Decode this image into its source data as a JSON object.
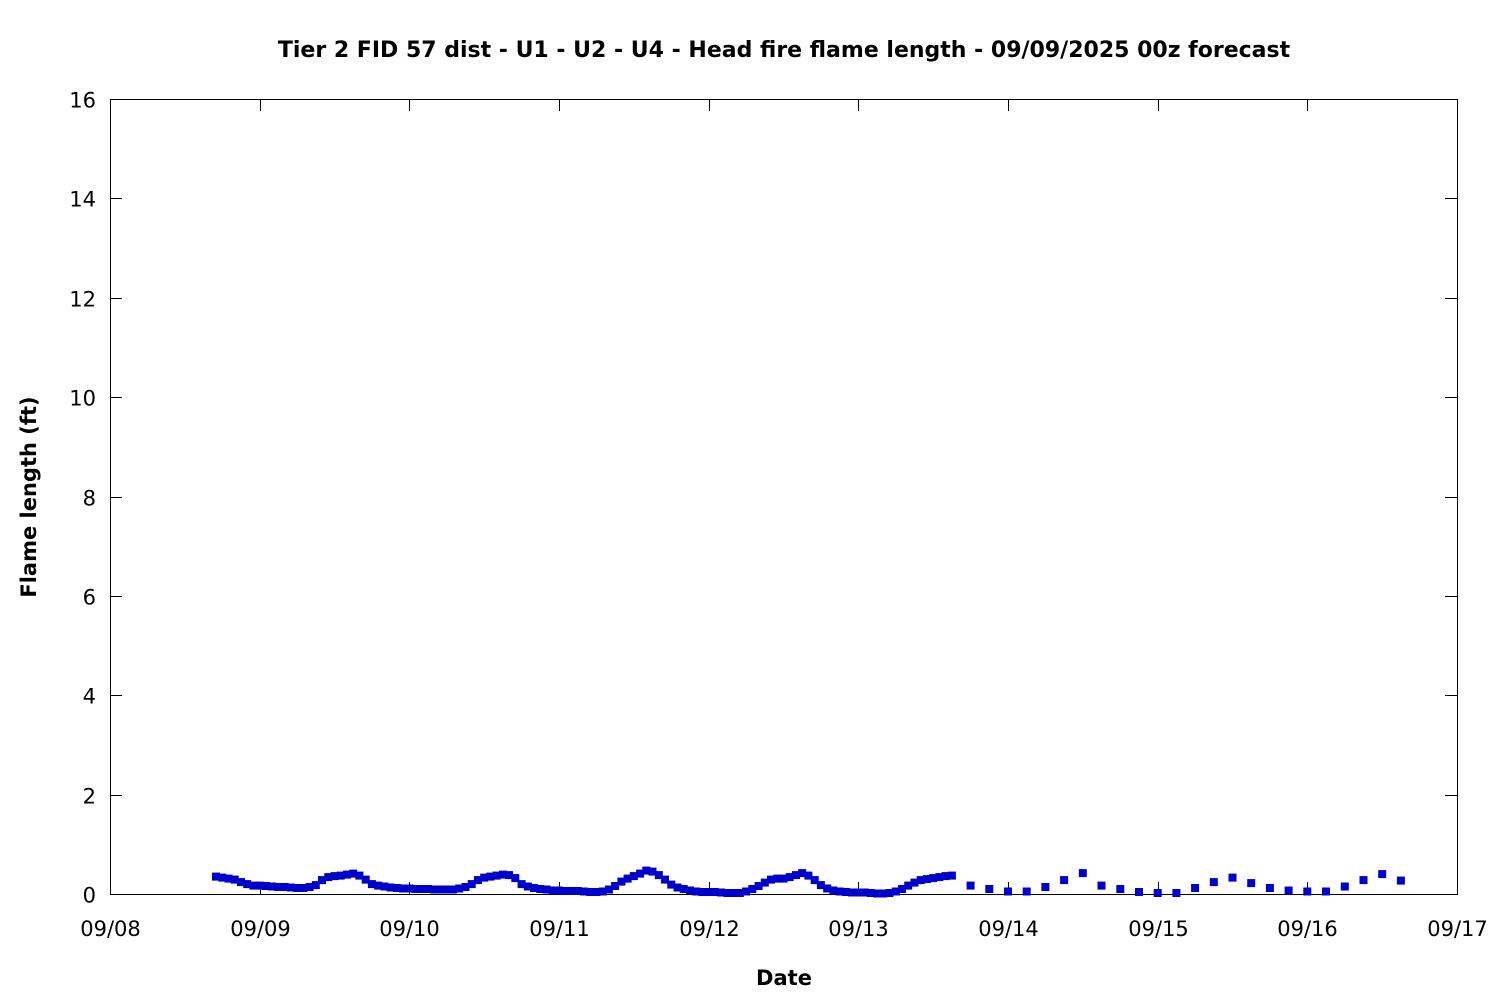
{
  "chart_data": {
    "type": "scatter",
    "title": "Tier 2 FID 57 dist - U1 - U2 - U4 - Head fire flame length - 09/09/2025 00z forecast",
    "xlabel": "Date",
    "ylabel": "Flame length (ft)",
    "xlim": [
      "09/08",
      "09/17"
    ],
    "ylim": [
      0,
      16
    ],
    "x_ticks": [
      "09/08",
      "09/09",
      "09/10",
      "09/11",
      "09/12",
      "09/13",
      "09/14",
      "09/15",
      "09/16",
      "09/17"
    ],
    "y_ticks": [
      "0",
      "2",
      "4",
      "6",
      "8",
      "10",
      "12",
      "14",
      "16"
    ],
    "grid": false,
    "legend": "none",
    "marker": "square",
    "series": [
      {
        "name": "",
        "color": "#0000cd",
        "points": [
          [
            "09/08 17:00",
            0.35
          ],
          [
            "09/08 18:00",
            0.33
          ],
          [
            "09/08 19:00",
            0.31
          ],
          [
            "09/08 20:00",
            0.29
          ],
          [
            "09/08 21:00",
            0.24
          ],
          [
            "09/08 22:00",
            0.2
          ],
          [
            "09/08 23:00",
            0.17
          ],
          [
            "09/09 00:00",
            0.17
          ],
          [
            "09/09 01:00",
            0.16
          ],
          [
            "09/09 02:00",
            0.15
          ],
          [
            "09/09 03:00",
            0.14
          ],
          [
            "09/09 04:00",
            0.14
          ],
          [
            "09/09 05:00",
            0.13
          ],
          [
            "09/09 06:00",
            0.12
          ],
          [
            "09/09 07:00",
            0.12
          ],
          [
            "09/09 08:00",
            0.14
          ],
          [
            "09/09 09:00",
            0.18
          ],
          [
            "09/09 10:00",
            0.28
          ],
          [
            "09/09 11:00",
            0.34
          ],
          [
            "09/09 12:00",
            0.36
          ],
          [
            "09/09 13:00",
            0.37
          ],
          [
            "09/09 14:00",
            0.39
          ],
          [
            "09/09 15:00",
            0.41
          ],
          [
            "09/09 16:00",
            0.37
          ],
          [
            "09/09 17:00",
            0.29
          ],
          [
            "09/09 18:00",
            0.2
          ],
          [
            "09/09 19:00",
            0.17
          ],
          [
            "09/09 20:00",
            0.15
          ],
          [
            "09/09 21:00",
            0.13
          ],
          [
            "09/09 22:00",
            0.12
          ],
          [
            "09/09 23:00",
            0.11
          ],
          [
            "09/10 00:00",
            0.11
          ],
          [
            "09/10 01:00",
            0.1
          ],
          [
            "09/10 02:00",
            0.1
          ],
          [
            "09/10 03:00",
            0.1
          ],
          [
            "09/10 04:00",
            0.09
          ],
          [
            "09/10 05:00",
            0.09
          ],
          [
            "09/10 06:00",
            0.09
          ],
          [
            "09/10 07:00",
            0.09
          ],
          [
            "09/10 08:00",
            0.11
          ],
          [
            "09/10 09:00",
            0.14
          ],
          [
            "09/10 10:00",
            0.2
          ],
          [
            "09/10 11:00",
            0.28
          ],
          [
            "09/10 12:00",
            0.33
          ],
          [
            "09/10 13:00",
            0.35
          ],
          [
            "09/10 14:00",
            0.37
          ],
          [
            "09/10 15:00",
            0.39
          ],
          [
            "09/10 16:00",
            0.38
          ],
          [
            "09/10 17:00",
            0.32
          ],
          [
            "09/10 18:00",
            0.2
          ],
          [
            "09/10 19:00",
            0.15
          ],
          [
            "09/10 20:00",
            0.12
          ],
          [
            "09/10 21:00",
            0.1
          ],
          [
            "09/10 22:00",
            0.09
          ],
          [
            "09/10 23:00",
            0.07
          ],
          [
            "09/11 00:00",
            0.07
          ],
          [
            "09/11 01:00",
            0.06
          ],
          [
            "09/11 02:00",
            0.06
          ],
          [
            "09/11 03:00",
            0.06
          ],
          [
            "09/11 04:00",
            0.05
          ],
          [
            "09/11 05:00",
            0.04
          ],
          [
            "09/11 06:00",
            0.04
          ],
          [
            "09/11 07:00",
            0.05
          ],
          [
            "09/11 08:00",
            0.09
          ],
          [
            "09/11 09:00",
            0.16
          ],
          [
            "09/11 10:00",
            0.25
          ],
          [
            "09/11 11:00",
            0.31
          ],
          [
            "09/11 12:00",
            0.36
          ],
          [
            "09/11 13:00",
            0.41
          ],
          [
            "09/11 14:00",
            0.47
          ],
          [
            "09/11 15:00",
            0.45
          ],
          [
            "09/11 16:00",
            0.38
          ],
          [
            "09/11 17:00",
            0.29
          ],
          [
            "09/11 18:00",
            0.19
          ],
          [
            "09/11 19:00",
            0.13
          ],
          [
            "09/11 20:00",
            0.1
          ],
          [
            "09/11 21:00",
            0.07
          ],
          [
            "09/11 22:00",
            0.05
          ],
          [
            "09/11 23:00",
            0.04
          ],
          [
            "09/12 00:00",
            0.04
          ],
          [
            "09/12 01:00",
            0.04
          ],
          [
            "09/12 02:00",
            0.03
          ],
          [
            "09/12 03:00",
            0.02
          ],
          [
            "09/12 04:00",
            0.02
          ],
          [
            "09/12 05:00",
            0.02
          ],
          [
            "09/12 06:00",
            0.05
          ],
          [
            "09/12 07:00",
            0.1
          ],
          [
            "09/12 08:00",
            0.16
          ],
          [
            "09/12 09:00",
            0.23
          ],
          [
            "09/12 10:00",
            0.29
          ],
          [
            "09/12 11:00",
            0.31
          ],
          [
            "09/12 12:00",
            0.31
          ],
          [
            "09/12 13:00",
            0.34
          ],
          [
            "09/12 14:00",
            0.38
          ],
          [
            "09/12 15:00",
            0.42
          ],
          [
            "09/12 16:00",
            0.37
          ],
          [
            "09/12 17:00",
            0.28
          ],
          [
            "09/12 18:00",
            0.18
          ],
          [
            "09/12 19:00",
            0.11
          ],
          [
            "09/12 20:00",
            0.07
          ],
          [
            "09/12 21:00",
            0.05
          ],
          [
            "09/12 22:00",
            0.04
          ],
          [
            "09/12 23:00",
            0.03
          ],
          [
            "09/13 00:00",
            0.03
          ],
          [
            "09/13 01:00",
            0.03
          ],
          [
            "09/13 02:00",
            0.02
          ],
          [
            "09/13 03:00",
            0.01
          ],
          [
            "09/13 04:00",
            0.01
          ],
          [
            "09/13 05:00",
            0.02
          ],
          [
            "09/13 06:00",
            0.05
          ],
          [
            "09/13 07:00",
            0.1
          ],
          [
            "09/13 08:00",
            0.17
          ],
          [
            "09/13 09:00",
            0.23
          ],
          [
            "09/13 10:00",
            0.28
          ],
          [
            "09/13 11:00",
            0.3
          ],
          [
            "09/13 12:00",
            0.32
          ],
          [
            "09/13 13:00",
            0.34
          ],
          [
            "09/13 14:00",
            0.36
          ],
          [
            "09/13 15:00",
            0.37
          ],
          [
            "09/13 18:00",
            0.17
          ],
          [
            "09/13 21:00",
            0.1
          ],
          [
            "09/14 00:00",
            0.05
          ],
          [
            "09/14 03:00",
            0.05
          ],
          [
            "09/14 06:00",
            0.14
          ],
          [
            "09/14 09:00",
            0.28
          ],
          [
            "09/14 12:00",
            0.42
          ],
          [
            "09/14 15:00",
            0.17
          ],
          [
            "09/14 18:00",
            0.1
          ],
          [
            "09/14 21:00",
            0.04
          ],
          [
            "09/15 00:00",
            0.02
          ],
          [
            "09/15 03:00",
            0.02
          ],
          [
            "09/15 06:00",
            0.12
          ],
          [
            "09/15 09:00",
            0.24
          ],
          [
            "09/15 12:00",
            0.33
          ],
          [
            "09/15 15:00",
            0.22
          ],
          [
            "09/15 18:00",
            0.12
          ],
          [
            "09/15 21:00",
            0.07
          ],
          [
            "09/16 00:00",
            0.05
          ],
          [
            "09/16 03:00",
            0.05
          ],
          [
            "09/16 06:00",
            0.15
          ],
          [
            "09/16 09:00",
            0.28
          ],
          [
            "09/16 12:00",
            0.4
          ],
          [
            "09/16 15:00",
            0.27
          ]
        ]
      }
    ]
  }
}
